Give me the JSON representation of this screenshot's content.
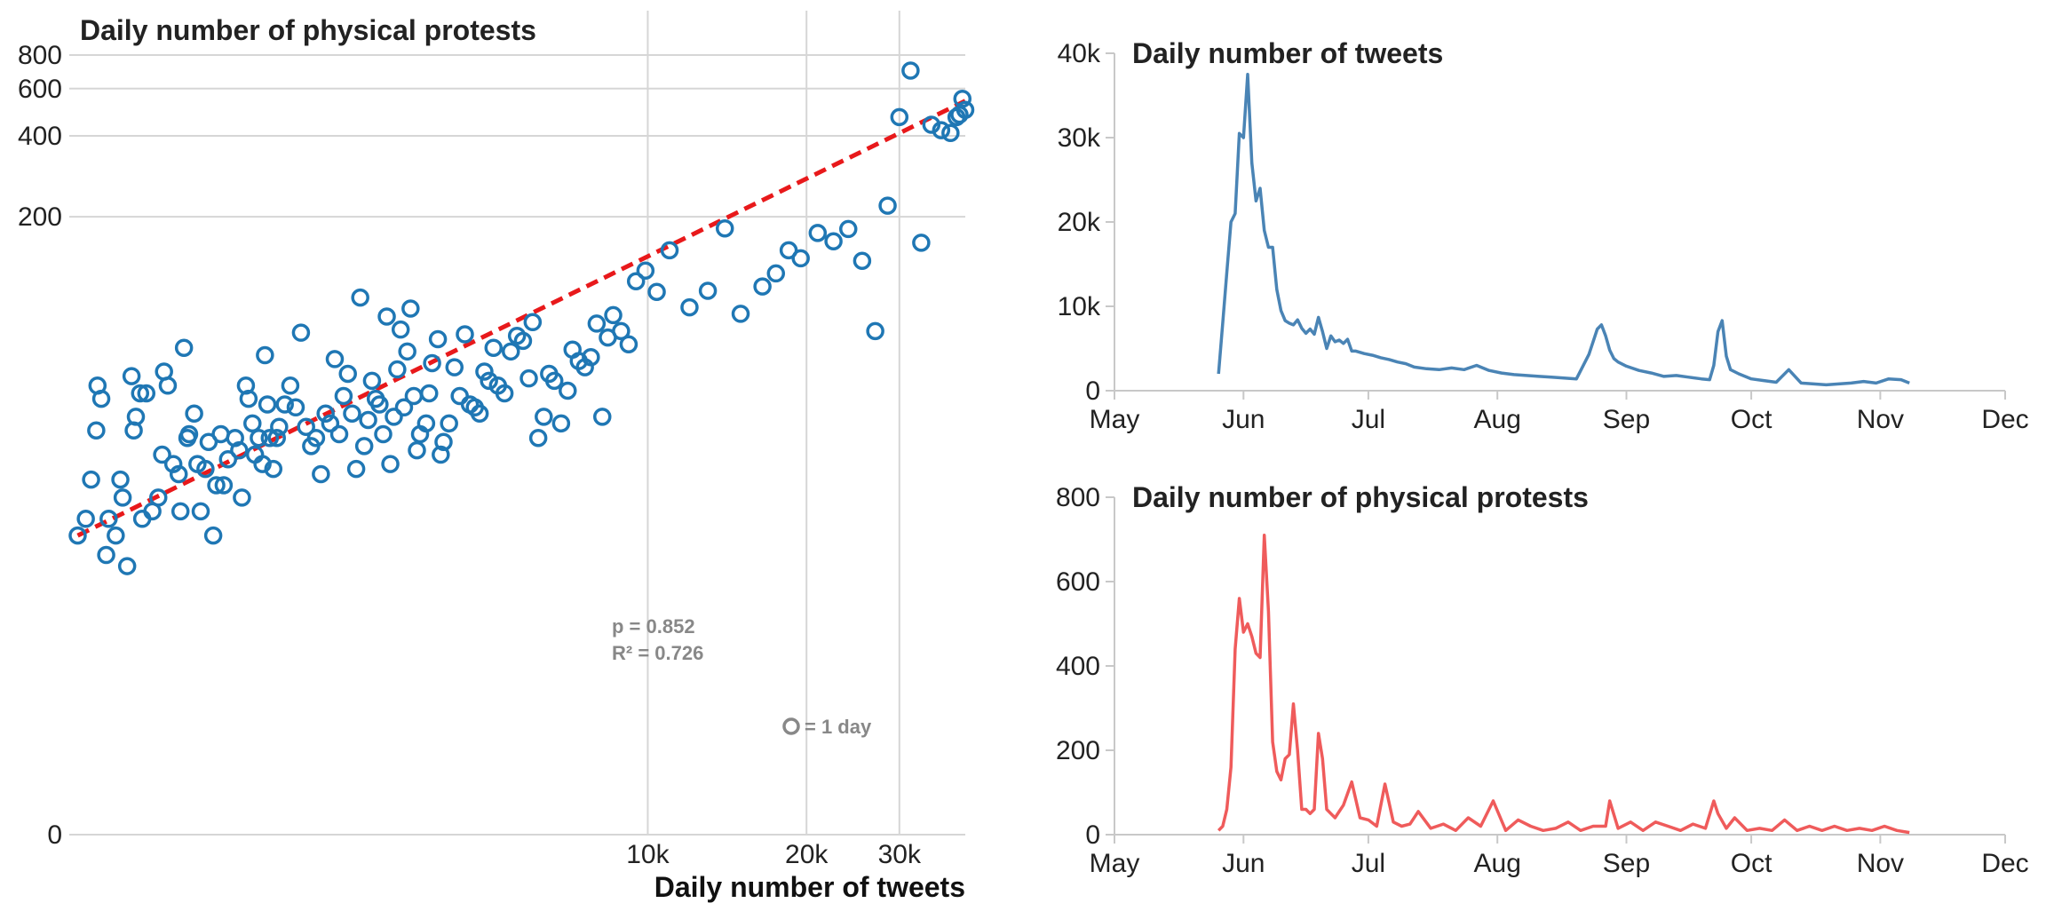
{
  "chart_data": [
    {
      "type": "scatter",
      "title": "Daily number of physical protests",
      "xlabel": "Daily number of tweets",
      "ylabel": "",
      "x_scale": "log",
      "y_scale": "log",
      "xlim": [
        800,
        40000
      ],
      "ylim": [
        1,
        800
      ],
      "x_ticks": [
        {
          "value": 10000,
          "label": "10k"
        },
        {
          "value": 20000,
          "label": "20k"
        },
        {
          "value": 30000,
          "label": "30k"
        }
      ],
      "y_ticks": [
        {
          "value": 800,
          "label": "800"
        },
        {
          "value": 600,
          "label": "600"
        },
        {
          "value": 400,
          "label": "400"
        },
        {
          "value": 200,
          "label": "200"
        },
        {
          "value": 1,
          "label": "0"
        }
      ],
      "grid": true,
      "trendline": {
        "color": "#e8191b",
        "style": "dashed",
        "from": {
          "x": 830,
          "y": 13
        },
        "to": {
          "x": 40000,
          "y": 540
        }
      },
      "annotations": {
        "p": "p = 0.852",
        "r2": "R² = 0.726",
        "legend": "= 1 day"
      },
      "marker_color": "#1f77b4",
      "points": [
        [
          830,
          13
        ],
        [
          860,
          15
        ],
        [
          880,
          21
        ],
        [
          900,
          32
        ],
        [
          905,
          47
        ],
        [
          920,
          42
        ],
        [
          940,
          11
        ],
        [
          950,
          15
        ],
        [
          980,
          13
        ],
        [
          1000,
          21
        ],
        [
          1010,
          18
        ],
        [
          1030,
          10
        ],
        [
          1050,
          51
        ],
        [
          1060,
          32
        ],
        [
          1070,
          36
        ],
        [
          1090,
          44
        ],
        [
          1100,
          15
        ],
        [
          1120,
          44
        ],
        [
          1150,
          16
        ],
        [
          1180,
          18
        ],
        [
          1200,
          26
        ],
        [
          1210,
          53
        ],
        [
          1230,
          47
        ],
        [
          1260,
          24
        ],
        [
          1290,
          22
        ],
        [
          1300,
          16
        ],
        [
          1320,
          65
        ],
        [
          1340,
          30
        ],
        [
          1350,
          31
        ],
        [
          1380,
          37
        ],
        [
          1400,
          24
        ],
        [
          1420,
          16
        ],
        [
          1450,
          23
        ],
        [
          1470,
          29
        ],
        [
          1500,
          13
        ],
        [
          1520,
          20
        ],
        [
          1550,
          31
        ],
        [
          1570,
          20
        ],
        [
          1600,
          25
        ],
        [
          1650,
          30
        ],
        [
          1680,
          27
        ],
        [
          1700,
          18
        ],
        [
          1730,
          47
        ],
        [
          1750,
          42
        ],
        [
          1780,
          34
        ],
        [
          1800,
          26
        ],
        [
          1830,
          30
        ],
        [
          1860,
          24
        ],
        [
          1880,
          61
        ],
        [
          1900,
          40
        ],
        [
          1920,
          30
        ],
        [
          1950,
          23
        ],
        [
          1980,
          30
        ],
        [
          2000,
          33
        ],
        [
          2050,
          40
        ],
        [
          2100,
          47
        ],
        [
          2150,
          39
        ],
        [
          2200,
          74
        ],
        [
          2250,
          33
        ],
        [
          2300,
          28
        ],
        [
          2350,
          30
        ],
        [
          2400,
          22
        ],
        [
          2450,
          37
        ],
        [
          2500,
          34
        ],
        [
          2550,
          59
        ],
        [
          2600,
          31
        ],
        [
          2650,
          43
        ],
        [
          2700,
          52
        ],
        [
          2750,
          37
        ],
        [
          2800,
          23
        ],
        [
          2850,
          100
        ],
        [
          2900,
          28
        ],
        [
          2950,
          35
        ],
        [
          3000,
          49
        ],
        [
          3050,
          42
        ],
        [
          3100,
          40
        ],
        [
          3150,
          31
        ],
        [
          3200,
          85
        ],
        [
          3250,
          24
        ],
        [
          3300,
          36
        ],
        [
          3350,
          54
        ],
        [
          3400,
          76
        ],
        [
          3450,
          39
        ],
        [
          3500,
          63
        ],
        [
          3550,
          91
        ],
        [
          3600,
          43
        ],
        [
          3650,
          27
        ],
        [
          3700,
          31
        ],
        [
          3800,
          34
        ],
        [
          3850,
          44
        ],
        [
          3900,
          57
        ],
        [
          4000,
          70
        ],
        [
          4050,
          26
        ],
        [
          4100,
          29
        ],
        [
          4200,
          34
        ],
        [
          4300,
          55
        ],
        [
          4400,
          43
        ],
        [
          4500,
          73
        ],
        [
          4600,
          40
        ],
        [
          4700,
          39
        ],
        [
          4800,
          37
        ],
        [
          4900,
          53
        ],
        [
          5000,
          49
        ],
        [
          5100,
          65
        ],
        [
          5200,
          47
        ],
        [
          5350,
          44
        ],
        [
          5500,
          63
        ],
        [
          5650,
          72
        ],
        [
          5800,
          69
        ],
        [
          5950,
          50
        ],
        [
          6050,
          81
        ],
        [
          6200,
          30
        ],
        [
          6350,
          36
        ],
        [
          6500,
          52
        ],
        [
          6650,
          49
        ],
        [
          6850,
          34
        ],
        [
          7050,
          45
        ],
        [
          7200,
          64
        ],
        [
          7400,
          58
        ],
        [
          7600,
          55
        ],
        [
          7800,
          60
        ],
        [
          8000,
          80
        ],
        [
          8200,
          36
        ],
        [
          8400,
          71
        ],
        [
          8600,
          86
        ],
        [
          8900,
          75
        ],
        [
          9200,
          67
        ],
        [
          9500,
          115
        ],
        [
          9900,
          126
        ],
        [
          10400,
          105
        ],
        [
          11000,
          150
        ],
        [
          12000,
          92
        ],
        [
          13000,
          106
        ],
        [
          14000,
          181
        ],
        [
          15000,
          87
        ],
        [
          16500,
          110
        ],
        [
          17500,
          123
        ],
        [
          18500,
          150
        ],
        [
          19500,
          140
        ],
        [
          21000,
          174
        ],
        [
          22500,
          162
        ],
        [
          24000,
          180
        ],
        [
          25500,
          137
        ],
        [
          27000,
          75
        ],
        [
          28500,
          220
        ],
        [
          30000,
          470
        ],
        [
          31500,
          700
        ],
        [
          33000,
          160
        ],
        [
          34500,
          440
        ],
        [
          36000,
          420
        ],
        [
          37500,
          410
        ],
        [
          38500,
          470
        ],
        [
          39000,
          480
        ],
        [
          39500,
          550
        ],
        [
          40000,
          500
        ]
      ]
    },
    {
      "type": "line",
      "title": "Daily number of tweets",
      "color": "#4a84b5",
      "x_ticks": [
        "May",
        "Jun",
        "Jul",
        "Aug",
        "Sep",
        "Oct",
        "Nov",
        "Dec"
      ],
      "y_ticks": [
        {
          "value": 0,
          "label": "0"
        },
        {
          "value": 10000,
          "label": "10k"
        },
        {
          "value": 20000,
          "label": "20k"
        },
        {
          "value": 30000,
          "label": "30k"
        },
        {
          "value": 40000,
          "label": "40k"
        }
      ],
      "ylim": [
        0,
        40000
      ],
      "x": [
        "2020-05-26",
        "2020-05-27",
        "2020-05-28",
        "2020-05-29",
        "2020-05-30",
        "2020-05-31",
        "2020-06-01",
        "2020-06-02",
        "2020-06-03",
        "2020-06-04",
        "2020-06-05",
        "2020-06-06",
        "2020-06-07",
        "2020-06-08",
        "2020-06-09",
        "2020-06-10",
        "2020-06-11",
        "2020-06-12",
        "2020-06-13",
        "2020-06-14",
        "2020-06-15",
        "2020-06-16",
        "2020-06-17",
        "2020-06-18",
        "2020-06-19",
        "2020-06-20",
        "2020-06-21",
        "2020-06-22",
        "2020-06-23",
        "2020-06-24",
        "2020-06-25",
        "2020-06-26",
        "2020-06-27",
        "2020-06-28",
        "2020-06-30",
        "2020-07-02",
        "2020-07-04",
        "2020-07-06",
        "2020-07-08",
        "2020-07-10",
        "2020-07-12",
        "2020-07-15",
        "2020-07-18",
        "2020-07-21",
        "2020-07-24",
        "2020-07-27",
        "2020-07-30",
        "2020-08-02",
        "2020-08-05",
        "2020-08-08",
        "2020-08-11",
        "2020-08-14",
        "2020-08-17",
        "2020-08-20",
        "2020-08-23",
        "2020-08-25",
        "2020-08-26",
        "2020-08-27",
        "2020-08-28",
        "2020-08-29",
        "2020-08-30",
        "2020-09-01",
        "2020-09-04",
        "2020-09-07",
        "2020-09-10",
        "2020-09-13",
        "2020-09-16",
        "2020-09-19",
        "2020-09-21",
        "2020-09-22",
        "2020-09-23",
        "2020-09-24",
        "2020-09-25",
        "2020-09-26",
        "2020-09-28",
        "2020-10-01",
        "2020-10-04",
        "2020-10-07",
        "2020-10-10",
        "2020-10-13",
        "2020-10-16",
        "2020-10-19",
        "2020-10-22",
        "2020-10-25",
        "2020-10-28",
        "2020-10-31",
        "2020-11-03",
        "2020-11-06",
        "2020-11-08"
      ],
      "values": [
        2000,
        8000,
        14000,
        20000,
        21000,
        30500,
        30000,
        37500,
        27000,
        22500,
        24000,
        19000,
        17000,
        17000,
        12000,
        9500,
        8300,
        8000,
        7800,
        8400,
        7400,
        6800,
        7300,
        6700,
        8700,
        7000,
        5000,
        6500,
        5800,
        6000,
        5600,
        6100,
        4700,
        4700,
        4400,
        4200,
        3900,
        3700,
        3400,
        3200,
        2800,
        2600,
        2500,
        2700,
        2500,
        3000,
        2400,
        2100,
        1900,
        1800,
        1700,
        1600,
        1500,
        1400,
        4300,
        7300,
        7800,
        6500,
        4800,
        3800,
        3400,
        2900,
        2400,
        2100,
        1700,
        1800,
        1600,
        1400,
        1300,
        3000,
        7000,
        8300,
        4100,
        2500,
        2000,
        1400,
        1200,
        1000,
        2500,
        900,
        800,
        700,
        800,
        900,
        1100,
        900,
        1400,
        1300,
        900
      ]
    },
    {
      "type": "line",
      "title": "Daily number of physical protests",
      "color": "#ef5b5b",
      "x_ticks": [
        "May",
        "Jun",
        "Jul",
        "Aug",
        "Sep",
        "Oct",
        "Nov",
        "Dec"
      ],
      "y_ticks": [
        {
          "value": 0,
          "label": "0"
        },
        {
          "value": 200,
          "label": "200"
        },
        {
          "value": 400,
          "label": "400"
        },
        {
          "value": 600,
          "label": "600"
        },
        {
          "value": 800,
          "label": "800"
        }
      ],
      "ylim": [
        0,
        800
      ],
      "x": [
        "2020-05-26",
        "2020-05-27",
        "2020-05-28",
        "2020-05-29",
        "2020-05-30",
        "2020-05-31",
        "2020-06-01",
        "2020-06-02",
        "2020-06-03",
        "2020-06-04",
        "2020-06-05",
        "2020-06-06",
        "2020-06-07",
        "2020-06-08",
        "2020-06-09",
        "2020-06-10",
        "2020-06-11",
        "2020-06-12",
        "2020-06-13",
        "2020-06-14",
        "2020-06-15",
        "2020-06-16",
        "2020-06-17",
        "2020-06-18",
        "2020-06-19",
        "2020-06-20",
        "2020-06-21",
        "2020-06-22",
        "2020-06-23",
        "2020-06-24",
        "2020-06-25",
        "2020-06-27",
        "2020-06-29",
        "2020-07-01",
        "2020-07-03",
        "2020-07-05",
        "2020-07-07",
        "2020-07-09",
        "2020-07-11",
        "2020-07-13",
        "2020-07-16",
        "2020-07-19",
        "2020-07-22",
        "2020-07-25",
        "2020-07-28",
        "2020-07-31",
        "2020-08-03",
        "2020-08-06",
        "2020-08-09",
        "2020-08-12",
        "2020-08-15",
        "2020-08-18",
        "2020-08-21",
        "2020-08-24",
        "2020-08-27",
        "2020-08-28",
        "2020-08-30",
        "2020-09-02",
        "2020-09-05",
        "2020-09-08",
        "2020-09-11",
        "2020-09-14",
        "2020-09-17",
        "2020-09-20",
        "2020-09-22",
        "2020-09-23",
        "2020-09-25",
        "2020-09-27",
        "2020-09-30",
        "2020-10-03",
        "2020-10-06",
        "2020-10-09",
        "2020-10-12",
        "2020-10-15",
        "2020-10-18",
        "2020-10-21",
        "2020-10-24",
        "2020-10-27",
        "2020-10-30",
        "2020-11-02",
        "2020-11-05",
        "2020-11-08"
      ],
      "values": [
        10,
        20,
        60,
        160,
        440,
        560,
        480,
        500,
        470,
        430,
        420,
        710,
        530,
        220,
        150,
        130,
        180,
        190,
        310,
        200,
        60,
        60,
        50,
        60,
        240,
        180,
        60,
        50,
        40,
        55,
        70,
        125,
        40,
        35,
        20,
        120,
        30,
        20,
        25,
        55,
        15,
        25,
        10,
        40,
        20,
        80,
        10,
        35,
        20,
        10,
        15,
        30,
        10,
        20,
        20,
        80,
        15,
        30,
        10,
        30,
        20,
        10,
        25,
        15,
        80,
        50,
        15,
        40,
        10,
        15,
        10,
        35,
        10,
        20,
        10,
        20,
        10,
        15,
        10,
        20,
        10,
        5
      ]
    }
  ]
}
